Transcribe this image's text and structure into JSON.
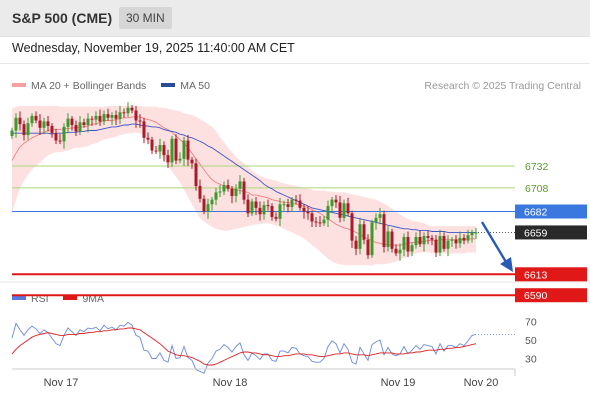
{
  "header": {
    "title": "S&P 500 (CME)",
    "timeframe": "30 MIN",
    "datetime": "Wednesday, November 19, 2025 11:40:00 AM CET"
  },
  "legend": {
    "bb_label": "MA 20 + Bollinger Bands",
    "ma50_label": "MA 50",
    "credit": "Research © 2025 Trading Central"
  },
  "rsi_legend": {
    "rsi_label": "RSI",
    "ma_label": "9MA"
  },
  "colors": {
    "bb_fill": "#fde0e0",
    "bb_line": "#f08080",
    "ma50": "#3a55c8",
    "up": "#3a9a2a",
    "down": "#a81c2a",
    "resistance": "#a8d878",
    "pivot": "#3a78e0",
    "support": "#e01818",
    "rsi": "#6a8ae0",
    "rsi_ma": "#e02020"
  },
  "chart_data": {
    "type": "candlestick",
    "y_unit": "index points",
    "x_tick_labels": [
      "Nov 17",
      "Nov 18",
      "Nov 19",
      "Nov 20"
    ],
    "price_levels": [
      {
        "label": "6732",
        "value": 6732,
        "kind": "resistance"
      },
      {
        "label": "6708",
        "value": 6708,
        "kind": "resistance"
      },
      {
        "label": "6682",
        "value": 6682,
        "kind": "pivot"
      },
      {
        "label": "6659",
        "value": 6659,
        "kind": "last"
      },
      {
        "label": "6613",
        "value": 6613,
        "kind": "support"
      },
      {
        "label": "6590",
        "value": 6590,
        "kind": "support"
      }
    ],
    "close": [
      6771,
      6785,
      6778,
      6766,
      6779,
      6787,
      6782,
      6774,
      6781,
      6776,
      6768,
      6760,
      6759,
      6775,
      6784,
      6777,
      6770,
      6780,
      6777,
      6784,
      6783,
      6787,
      6781,
      6789,
      6785,
      6788,
      6784,
      6791,
      6790,
      6796,
      6793,
      6782,
      6781,
      6763,
      6761,
      6749,
      6748,
      6755,
      6744,
      6736,
      6762,
      6738,
      6740,
      6760,
      6739,
      6735,
      6710,
      6696,
      6682,
      6690,
      6695,
      6703,
      6704,
      6711,
      6707,
      6699,
      6707,
      6715,
      6695,
      6680,
      6693,
      6686,
      6679,
      6689,
      6688,
      6676,
      6674,
      6690,
      6690,
      6687,
      6695,
      6694,
      6686,
      6682,
      6680,
      6671,
      6670,
      6669,
      6673,
      6688,
      6695,
      6692,
      6675,
      6691,
      6680,
      6650,
      6641,
      6668,
      6651,
      6634,
      6670,
      6675,
      6679,
      6643,
      6660,
      6641,
      6636,
      6640,
      6654,
      6638,
      6645,
      6654,
      6646,
      6655,
      6653,
      6651,
      6637,
      6655,
      6641,
      6650,
      6651,
      6647,
      6653,
      6650,
      6656,
      6659,
      6659
    ],
    "ma20": [
      6738,
      6746,
      6753,
      6757,
      6760,
      6763,
      6765,
      6767,
      6769,
      6771,
      6772,
      6772,
      6772,
      6773,
      6773,
      6774,
      6774,
      6775,
      6775,
      6776,
      6778,
      6778,
      6780,
      6782,
      6782,
      6782,
      6783,
      6784,
      6785,
      6785,
      6786,
      6786,
      6786,
      6784,
      6783,
      6782,
      6780,
      6777,
      6774,
      6772,
      6769,
      6765,
      6761,
      6757,
      6752,
      6746,
      6740,
      6734,
      6728,
      6722,
      6717,
      6714,
      6712,
      6710,
      6708,
      6707,
      6706,
      6705,
      6704,
      6703,
      6700,
      6700,
      6699,
      6698,
      6697,
      6695,
      6694,
      6693,
      6692,
      6692,
      6691,
      6690,
      6689,
      6688,
      6686,
      6684,
      6682,
      6680,
      6677,
      6674,
      6671,
      6668,
      6666,
      6664,
      6663,
      6661,
      6659,
      6657,
      6654,
      6652,
      6650,
      6648,
      6647,
      6646,
      6646,
      6645,
      6645,
      6645,
      6646,
      6647,
      6648,
      6648,
      6649,
      6649,
      6650,
      6650,
      6650,
      6651,
      6651,
      6651,
      6651,
      6651,
      6651,
      6651,
      6652,
      6652,
      6652
    ],
    "bb_upper": [
      6795,
      6797,
      6798,
      6798,
      6798,
      6798,
      6798,
      6798,
      6798,
      6798,
      6798,
      6798,
      6797,
      6797,
      6797,
      6797,
      6797,
      6797,
      6797,
      6797,
      6797,
      6797,
      6797,
      6797,
      6798,
      6798,
      6798,
      6798,
      6798,
      6798,
      6798,
      6798,
      6798,
      6797,
      6797,
      6797,
      6797,
      6796,
      6796,
      6795,
      6794,
      6793,
      6792,
      6790,
      6789,
      6788,
      6786,
      6784,
      6781,
      6778,
      6775,
      6770,
      6764,
      6758,
      6752,
      6747,
      6742,
      6738,
      6735,
      6731,
      6727,
      6724,
      6721,
      6719,
      6718,
      6717,
      6716,
      6714,
      6713,
      6712,
      6711,
      6710,
      6709,
      6708,
      6707,
      6706,
      6705,
      6705,
      6705,
      6704,
      6704,
      6703,
      6703,
      6703,
      6702,
      6701,
      6700,
      6699,
      6698,
      6697,
      6696,
      6695,
      6693,
      6691,
      6688,
      6685,
      6682,
      6679,
      6676,
      6674,
      6672,
      6671,
      6670,
      6669,
      6667,
      6666,
      6666,
      6666,
      6666,
      6666,
      6666,
      6666,
      6666,
      6666,
      6666,
      6666,
      6666
    ],
    "bb_lower": [
      6680,
      6695,
      6708,
      6716,
      6722,
      6728,
      6732,
      6736,
      6740,
      6744,
      6746,
      6747,
      6747,
      6748,
      6749,
      6751,
      6752,
      6752,
      6753,
      6754,
      6756,
      6757,
      6759,
      6761,
      6762,
      6763,
      6764,
      6766,
      6767,
      6768,
      6768,
      6769,
      6768,
      6764,
      6760,
      6756,
      6751,
      6745,
      6738,
      6732,
      6726,
      6720,
      6714,
      6706,
      6698,
      6690,
      6682,
      6675,
      6671,
      6668,
      6665,
      6663,
      6662,
      6661,
      6661,
      6662,
      6663,
      6664,
      6665,
      6666,
      6667,
      6668,
      6668,
      6669,
      6669,
      6668,
      6667,
      6665,
      6663,
      6661,
      6659,
      6657,
      6655,
      6652,
      6649,
      6645,
      6642,
      6638,
      6634,
      6630,
      6627,
      6625,
      6624,
      6623,
      6623,
      6623,
      6623,
      6623,
      6623,
      6623,
      6623,
      6624,
      6624,
      6624,
      6625,
      6626,
      6627,
      6629,
      6631,
      6633,
      6635,
      6636,
      6637,
      6637,
      6637,
      6636,
      6636,
      6636,
      6636,
      6636,
      6636,
      6636,
      6636,
      6636,
      6637,
      6637,
      6637
    ],
    "ma50": [
      6768,
      6768,
      6768,
      6768,
      6768,
      6768,
      6768,
      6768,
      6768,
      6768,
      6767,
      6768,
      6768,
      6768,
      6769,
      6769,
      6769,
      6770,
      6770,
      6771,
      6771,
      6771,
      6772,
      6773,
      6774,
      6775,
      6775,
      6776,
      6777,
      6777,
      6778,
      6778,
      6777,
      6776,
      6776,
      6775,
      6775,
      6774,
      6772,
      6771,
      6770,
      6769,
      6767,
      6766,
      6764,
      6763,
      6761,
      6759,
      6757,
      6754,
      6752,
      6749,
      6746,
      6743,
      6740,
      6737,
      6734,
      6731,
      6728,
      6725,
      6722,
      6719,
      6716,
      6712,
      6709,
      6707,
      6704,
      6702,
      6700,
      6698,
      6696,
      6694,
      6692,
      6690,
      6688,
      6686,
      6685,
      6684,
      6683,
      6682,
      6681,
      6680,
      6679,
      6678,
      6677,
      6676,
      6675,
      6674,
      6673,
      6672,
      6671,
      6670,
      6669,
      6668,
      6667,
      6666,
      6665,
      6664,
      6663,
      6663,
      6662,
      6662,
      6661,
      6661,
      6661,
      6660,
      6660,
      6660,
      6660,
      6659,
      6659,
      6659,
      6659,
      6659,
      6659,
      6659,
      6659
    ],
    "rsi": [
      52,
      68,
      61,
      55,
      61,
      65,
      62,
      57,
      61,
      58,
      52,
      46,
      44,
      55,
      63,
      59,
      55,
      61,
      59,
      63,
      62,
      64,
      60,
      66,
      62,
      64,
      61,
      66,
      65,
      69,
      66,
      55,
      53,
      39,
      38,
      30,
      30,
      36,
      28,
      26,
      44,
      30,
      31,
      43,
      31,
      28,
      18,
      16,
      14,
      25,
      30,
      38,
      40,
      45,
      42,
      37,
      43,
      47,
      34,
      28,
      36,
      33,
      29,
      35,
      35,
      28,
      27,
      38,
      38,
      36,
      42,
      41,
      35,
      33,
      32,
      27,
      26,
      26,
      30,
      43,
      49,
      46,
      36,
      46,
      40,
      26,
      24,
      42,
      35,
      28,
      45,
      48,
      50,
      34,
      42,
      35,
      33,
      35,
      43,
      35,
      39,
      44,
      40,
      45,
      44,
      43,
      35,
      46,
      38,
      44,
      44,
      42,
      46,
      44,
      49,
      55,
      56
    ],
    "rsi_ma": [
      35,
      40,
      44,
      47,
      50,
      53,
      55,
      56,
      57,
      58,
      57,
      56,
      55,
      55,
      56,
      56,
      56,
      57,
      57,
      58,
      58,
      59,
      59,
      60,
      60,
      61,
      61,
      62,
      62,
      63,
      63,
      62,
      61,
      58,
      55,
      52,
      49,
      46,
      42,
      38,
      36,
      34,
      33,
      33,
      32,
      31,
      29,
      27,
      24,
      23,
      23,
      24,
      26,
      28,
      30,
      32,
      34,
      36,
      37,
      37,
      36,
      36,
      35,
      34,
      34,
      33,
      32,
      32,
      33,
      33,
      34,
      35,
      35,
      35,
      34,
      34,
      33,
      32,
      32,
      33,
      34,
      35,
      35,
      36,
      36,
      35,
      34,
      34,
      34,
      33,
      34,
      35,
      36,
      36,
      36,
      36,
      35,
      35,
      35,
      36,
      36,
      37,
      37,
      38,
      39,
      39,
      39,
      40,
      40,
      41,
      41,
      42,
      42,
      43,
      44,
      45,
      46
    ],
    "rsi_ticks": [
      "70",
      "50",
      "30"
    ]
  }
}
